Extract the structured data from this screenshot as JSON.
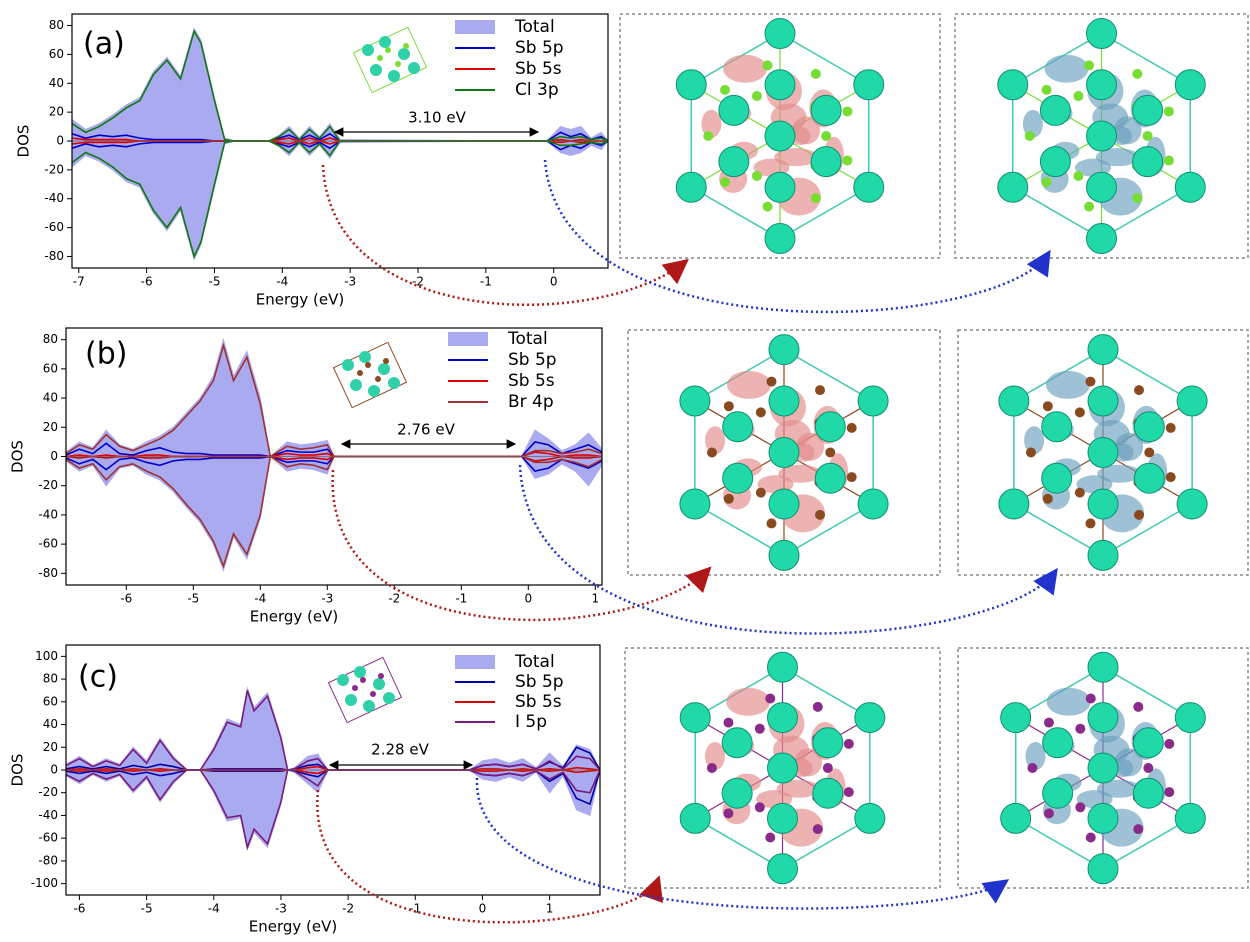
{
  "chart_data": [
    {
      "type": "dos",
      "panel": "(a)",
      "annotation": "3.10 eV",
      "xlabel": "Energy (eV)",
      "ylabel": "DOS",
      "xlim": [
        -7.1,
        0.8
      ],
      "xticks": [
        -7,
        -6,
        -5,
        -4,
        -3,
        -2,
        -1,
        0
      ],
      "ylim": [
        -88,
        88
      ],
      "yticks": [
        -80,
        -60,
        -40,
        -20,
        0,
        20,
        40,
        60,
        80
      ],
      "x": [
        -7.1,
        -6.9,
        -6.7,
        -6.5,
        -6.3,
        -6.1,
        -5.9,
        -5.7,
        -5.5,
        -5.3,
        -5.2,
        -5.0,
        -4.85,
        -4.7,
        -4.2,
        -4.05,
        -3.9,
        -3.75,
        -3.6,
        -3.45,
        -3.3,
        -3.15,
        -0.1,
        0.1,
        0.25,
        0.4,
        0.55,
        0.7,
        0.8
      ],
      "series": [
        {
          "name": "Total",
          "color": "#aaaaf0",
          "area": true,
          "values": [
            15,
            8,
            12,
            18,
            25,
            30,
            48,
            58,
            45,
            78,
            70,
            30,
            2,
            0,
            0,
            4,
            10,
            2,
            10,
            3,
            12,
            1,
            0,
            10,
            8,
            10,
            2,
            6,
            0
          ],
          "values_down": [
            -18,
            -10,
            -14,
            -20,
            -28,
            -32,
            -50,
            -62,
            -48,
            -82,
            -72,
            -32,
            -2,
            0,
            0,
            -4,
            -10,
            -2,
            -10,
            -3,
            -12,
            -1,
            0,
            -8,
            -10,
            -8,
            -3,
            -6,
            0
          ]
        },
        {
          "name": "Sb 5p",
          "color": "#0000cc",
          "values": [
            5,
            2,
            4,
            3,
            4,
            2,
            1,
            1,
            1,
            1,
            1,
            0,
            0,
            0,
            0,
            2,
            4,
            1,
            4,
            1,
            5,
            0,
            0,
            6,
            3,
            5,
            1,
            3,
            0
          ],
          "values_down": [
            -5,
            -2,
            -4,
            -3,
            -4,
            -2,
            -1,
            -1,
            -1,
            -1,
            -1,
            0,
            0,
            0,
            0,
            -2,
            -4,
            -1,
            -4,
            -1,
            -5,
            0,
            0,
            -6,
            -3,
            -5,
            -1,
            -3,
            0
          ]
        },
        {
          "name": "Sb 5s",
          "color": "#dd0000",
          "values": [
            2,
            1,
            1,
            1,
            1,
            0,
            0,
            0,
            0,
            0,
            0,
            0,
            0,
            0,
            0,
            1,
            2,
            0,
            2,
            0,
            2,
            0,
            0,
            1,
            0,
            1,
            0,
            0,
            0
          ],
          "values_down": [
            -2,
            -1,
            -1,
            -1,
            -1,
            0,
            0,
            0,
            0,
            0,
            0,
            0,
            0,
            0,
            0,
            -1,
            -2,
            0,
            -2,
            0,
            -2,
            0,
            0,
            -1,
            0,
            -1,
            0,
            0,
            0
          ]
        },
        {
          "name": "Cl 3p",
          "color": "#117711",
          "values": [
            12,
            6,
            10,
            16,
            23,
            28,
            46,
            56,
            43,
            76,
            68,
            28,
            1,
            0,
            0,
            3,
            8,
            1,
            8,
            2,
            10,
            0,
            0,
            3,
            2,
            3,
            1,
            2,
            0
          ],
          "values_down": [
            -15,
            -8,
            -12,
            -18,
            -26,
            -30,
            -48,
            -60,
            -46,
            -80,
            -70,
            -30,
            -1,
            0,
            0,
            -3,
            -8,
            -1,
            -8,
            -2,
            -10,
            0,
            0,
            -3,
            -3,
            -2,
            -1,
            -2,
            0
          ]
        }
      ]
    },
    {
      "type": "dos",
      "panel": "(b)",
      "annotation": "2.76 eV",
      "xlabel": "Energy (eV)",
      "ylabel": "DOS",
      "xlim": [
        -6.9,
        1.1
      ],
      "xticks": [
        -6,
        -5,
        -4,
        -3,
        -2,
        -1,
        0,
        1
      ],
      "ylim": [
        -88,
        88
      ],
      "yticks": [
        -80,
        -60,
        -40,
        -20,
        0,
        20,
        40,
        60,
        80
      ],
      "x": [
        -6.9,
        -6.7,
        -6.5,
        -6.3,
        -6.1,
        -5.9,
        -5.7,
        -5.5,
        -5.3,
        -5.1,
        -4.9,
        -4.7,
        -4.55,
        -4.4,
        -4.2,
        -4.0,
        -3.85,
        -3.6,
        -3.4,
        -3.2,
        -3.0,
        -2.9,
        -0.1,
        0.1,
        0.3,
        0.5,
        0.7,
        0.9,
        1.1
      ],
      "series": [
        {
          "name": "Total",
          "color": "#aaaaf0",
          "area": true,
          "values": [
            3,
            10,
            6,
            18,
            8,
            5,
            10,
            14,
            20,
            30,
            40,
            55,
            80,
            55,
            72,
            40,
            0,
            10,
            8,
            9,
            11,
            0,
            0,
            18,
            12,
            4,
            8,
            16,
            5
          ],
          "values_down": [
            -3,
            -10,
            -6,
            -20,
            -8,
            -6,
            -12,
            -16,
            -24,
            -35,
            -45,
            -60,
            -78,
            -55,
            -70,
            -42,
            0,
            -10,
            -8,
            -9,
            -12,
            0,
            0,
            -15,
            -12,
            -5,
            -10,
            -20,
            -6
          ]
        },
        {
          "name": "Sb 5p",
          "color": "#0000cc",
          "values": [
            1,
            5,
            2,
            9,
            2,
            1,
            4,
            6,
            3,
            2,
            2,
            1,
            1,
            1,
            1,
            1,
            0,
            4,
            3,
            3,
            5,
            0,
            0,
            10,
            8,
            2,
            5,
            8,
            3
          ],
          "values_down": [
            -1,
            -5,
            -2,
            -9,
            -2,
            -1,
            -4,
            -6,
            -3,
            -2,
            -2,
            -1,
            -1,
            -1,
            -1,
            -1,
            0,
            -4,
            -3,
            -3,
            -5,
            0,
            0,
            -10,
            -8,
            -2,
            -5,
            -8,
            -3
          ]
        },
        {
          "name": "Sb 5s",
          "color": "#dd0000",
          "values": [
            0,
            1,
            0,
            1,
            0,
            0,
            1,
            1,
            0,
            0,
            0,
            0,
            0,
            0,
            0,
            0,
            0,
            2,
            1,
            1,
            2,
            0,
            0,
            3,
            2,
            0,
            1,
            1,
            0
          ],
          "values_down": [
            0,
            -1,
            0,
            -1,
            0,
            0,
            -1,
            -1,
            0,
            0,
            0,
            0,
            0,
            0,
            0,
            0,
            0,
            -2,
            -1,
            -1,
            -2,
            0,
            0,
            -3,
            -2,
            0,
            -1,
            -1,
            0
          ]
        },
        {
          "name": "Br 4p",
          "color": "#a03030",
          "values": [
            2,
            8,
            5,
            15,
            7,
            4,
            8,
            12,
            18,
            28,
            38,
            52,
            76,
            52,
            68,
            36,
            0,
            7,
            5,
            6,
            8,
            0,
            0,
            4,
            4,
            2,
            3,
            5,
            2
          ],
          "values_down": [
            -2,
            -8,
            -5,
            -16,
            -7,
            -5,
            -10,
            -14,
            -22,
            -33,
            -43,
            -58,
            -75,
            -53,
            -67,
            -40,
            0,
            -7,
            -5,
            -6,
            -9,
            0,
            0,
            -4,
            -4,
            -2,
            -4,
            -7,
            -2
          ]
        }
      ]
    },
    {
      "type": "dos",
      "panel": "(c)",
      "annotation": "2.28 eV",
      "xlabel": "Energy (eV)",
      "ylabel": "DOS",
      "xlim": [
        -6.2,
        1.75
      ],
      "xticks": [
        -6,
        -5,
        -4,
        -3,
        -2,
        -1,
        0,
        1
      ],
      "ylim": [
        -110,
        110
      ],
      "yticks": [
        -100,
        -80,
        -60,
        -40,
        -20,
        0,
        20,
        40,
        60,
        80,
        100
      ],
      "x": [
        -6.2,
        -6.0,
        -5.8,
        -5.6,
        -5.4,
        -5.2,
        -5.0,
        -4.8,
        -4.6,
        -4.4,
        -4.2,
        -4.0,
        -3.8,
        -3.6,
        -3.5,
        -3.4,
        -3.2,
        -3.0,
        -2.9,
        -2.8,
        -2.6,
        -2.45,
        -2.3,
        -0.2,
        0.0,
        0.2,
        0.4,
        0.6,
        0.8,
        1.0,
        1.2,
        1.4,
        1.6,
        1.75
      ],
      "series": [
        {
          "name": "Total",
          "color": "#aaaaf0",
          "area": true,
          "values": [
            5,
            12,
            4,
            10,
            5,
            20,
            8,
            28,
            12,
            0,
            0,
            20,
            45,
            40,
            72,
            55,
            68,
            30,
            0,
            2,
            12,
            14,
            0,
            0,
            8,
            10,
            6,
            10,
            2,
            15,
            3,
            22,
            18,
            0
          ],
          "values_down": [
            -5,
            -12,
            -4,
            -10,
            -5,
            -20,
            -8,
            -28,
            -12,
            0,
            0,
            -20,
            -45,
            -42,
            -70,
            -55,
            -68,
            -30,
            0,
            -2,
            -12,
            -20,
            0,
            0,
            -8,
            -10,
            -6,
            -10,
            -2,
            -20,
            -5,
            -35,
            -40,
            0
          ]
        },
        {
          "name": "Sb 5p",
          "color": "#0000aa",
          "values": [
            1,
            3,
            1,
            3,
            1,
            4,
            2,
            5,
            3,
            0,
            0,
            1,
            1,
            1,
            1,
            1,
            1,
            1,
            0,
            1,
            4,
            5,
            0,
            0,
            4,
            5,
            3,
            5,
            1,
            7,
            2,
            20,
            15,
            0
          ],
          "values_down": [
            -1,
            -3,
            -1,
            -3,
            -1,
            -4,
            -2,
            -5,
            -3,
            0,
            0,
            -1,
            -1,
            -1,
            -1,
            -1,
            -1,
            -1,
            0,
            -1,
            -4,
            -6,
            0,
            0,
            -4,
            -5,
            -3,
            -5,
            -1,
            -10,
            -3,
            -25,
            -30,
            0
          ]
        },
        {
          "name": "Sb 5s",
          "color": "#dd0000",
          "values": [
            0,
            1,
            0,
            1,
            0,
            1,
            0,
            1,
            0,
            0,
            0,
            0,
            0,
            0,
            0,
            0,
            0,
            0,
            0,
            0,
            2,
            3,
            0,
            0,
            1,
            1,
            0,
            1,
            0,
            1,
            0,
            2,
            1,
            0
          ],
          "values_down": [
            0,
            -1,
            0,
            -1,
            0,
            -1,
            0,
            -1,
            0,
            0,
            0,
            0,
            0,
            0,
            0,
            0,
            0,
            0,
            0,
            0,
            -2,
            -3,
            0,
            0,
            -1,
            -1,
            0,
            -1,
            0,
            -1,
            0,
            -2,
            -1,
            0
          ]
        },
        {
          "name": "I 5p",
          "color": "#7a1a7a",
          "values": [
            4,
            10,
            3,
            8,
            4,
            18,
            6,
            26,
            10,
            0,
            0,
            18,
            42,
            38,
            70,
            52,
            65,
            28,
            0,
            1,
            8,
            10,
            0,
            0,
            4,
            5,
            3,
            5,
            1,
            8,
            1,
            12,
            10,
            0
          ],
          "values_down": [
            -4,
            -10,
            -3,
            -8,
            -4,
            -18,
            -6,
            -26,
            -10,
            0,
            0,
            -18,
            -42,
            -40,
            -68,
            -52,
            -65,
            -28,
            0,
            -1,
            -8,
            -14,
            0,
            0,
            -4,
            -5,
            -3,
            -5,
            -1,
            -8,
            -2,
            -18,
            -20,
            0
          ]
        }
      ]
    }
  ]
}
